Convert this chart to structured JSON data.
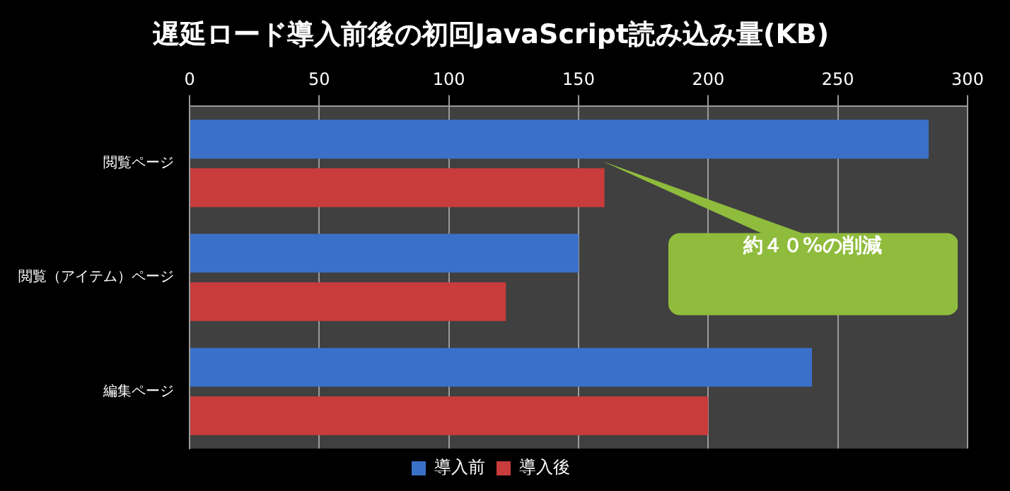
{
  "chart_data": {
    "type": "bar",
    "orientation": "horizontal",
    "title": "遅延ロード導入前後の初回JavaScript読み込み量(KB)",
    "categories": [
      "閲覧ページ",
      "閲覧（アイテム）ページ",
      "編集ページ"
    ],
    "series": [
      {
        "name": "導入前",
        "color": "#3a70c8",
        "values": [
          285,
          150,
          240
        ]
      },
      {
        "name": "導入後",
        "color": "#c83c3c",
        "values": [
          160,
          122,
          200
        ]
      }
    ],
    "xlim": [
      0,
      300
    ],
    "xticks": [
      0,
      50,
      100,
      150,
      200,
      250,
      300
    ],
    "grid": "x",
    "legend": "bottom",
    "annotations": [
      "約４０%の削減"
    ]
  }
}
